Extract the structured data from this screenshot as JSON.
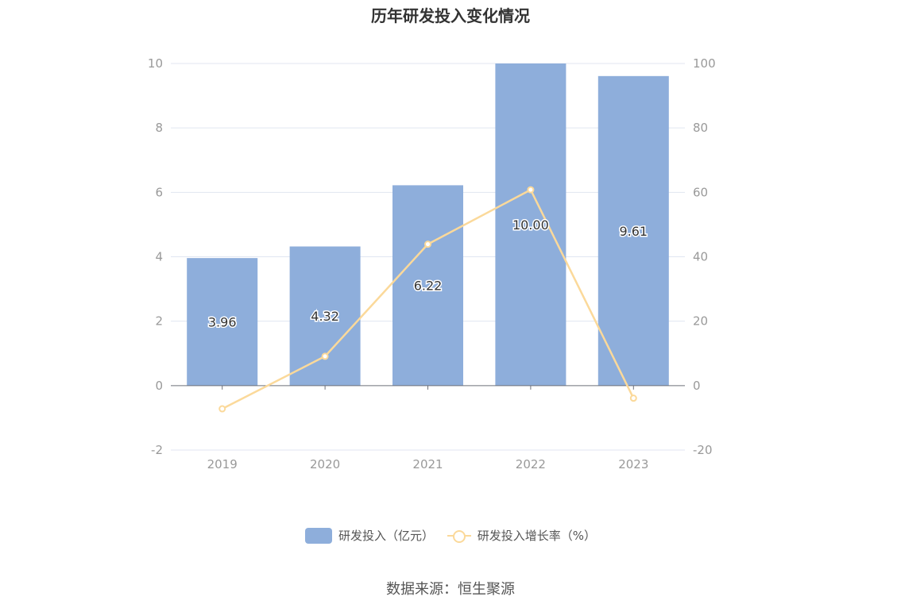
{
  "chart_data": {
    "type": "bar",
    "title": "历年研发投入变化情况",
    "categories": [
      "2019",
      "2020",
      "2021",
      "2022",
      "2023"
    ],
    "series": [
      {
        "name": "研发投入（亿元）",
        "type": "bar",
        "axis": "left",
        "values": [
          3.96,
          4.32,
          6.22,
          10.0,
          9.61
        ],
        "labels": [
          "3.96",
          "4.32",
          "6.22",
          "10.00",
          "9.61"
        ],
        "color": "#8eaedb"
      },
      {
        "name": "研发投入增长率（%）",
        "type": "line",
        "axis": "right",
        "values": [
          -7.2,
          9.1,
          43.9,
          60.8,
          -3.9
        ],
        "color": "#fbd99a"
      }
    ],
    "y_left": {
      "min": -2,
      "max": 10,
      "ticks": [
        "10",
        "8",
        "6",
        "4",
        "2",
        "0",
        "-2"
      ]
    },
    "y_right": {
      "min": -20,
      "max": 100,
      "ticks": [
        "100",
        "80",
        "60",
        "40",
        "20",
        "0",
        "-20"
      ]
    },
    "grid": true,
    "legend_position": "bottom",
    "source": "数据来源：恒生聚源"
  }
}
